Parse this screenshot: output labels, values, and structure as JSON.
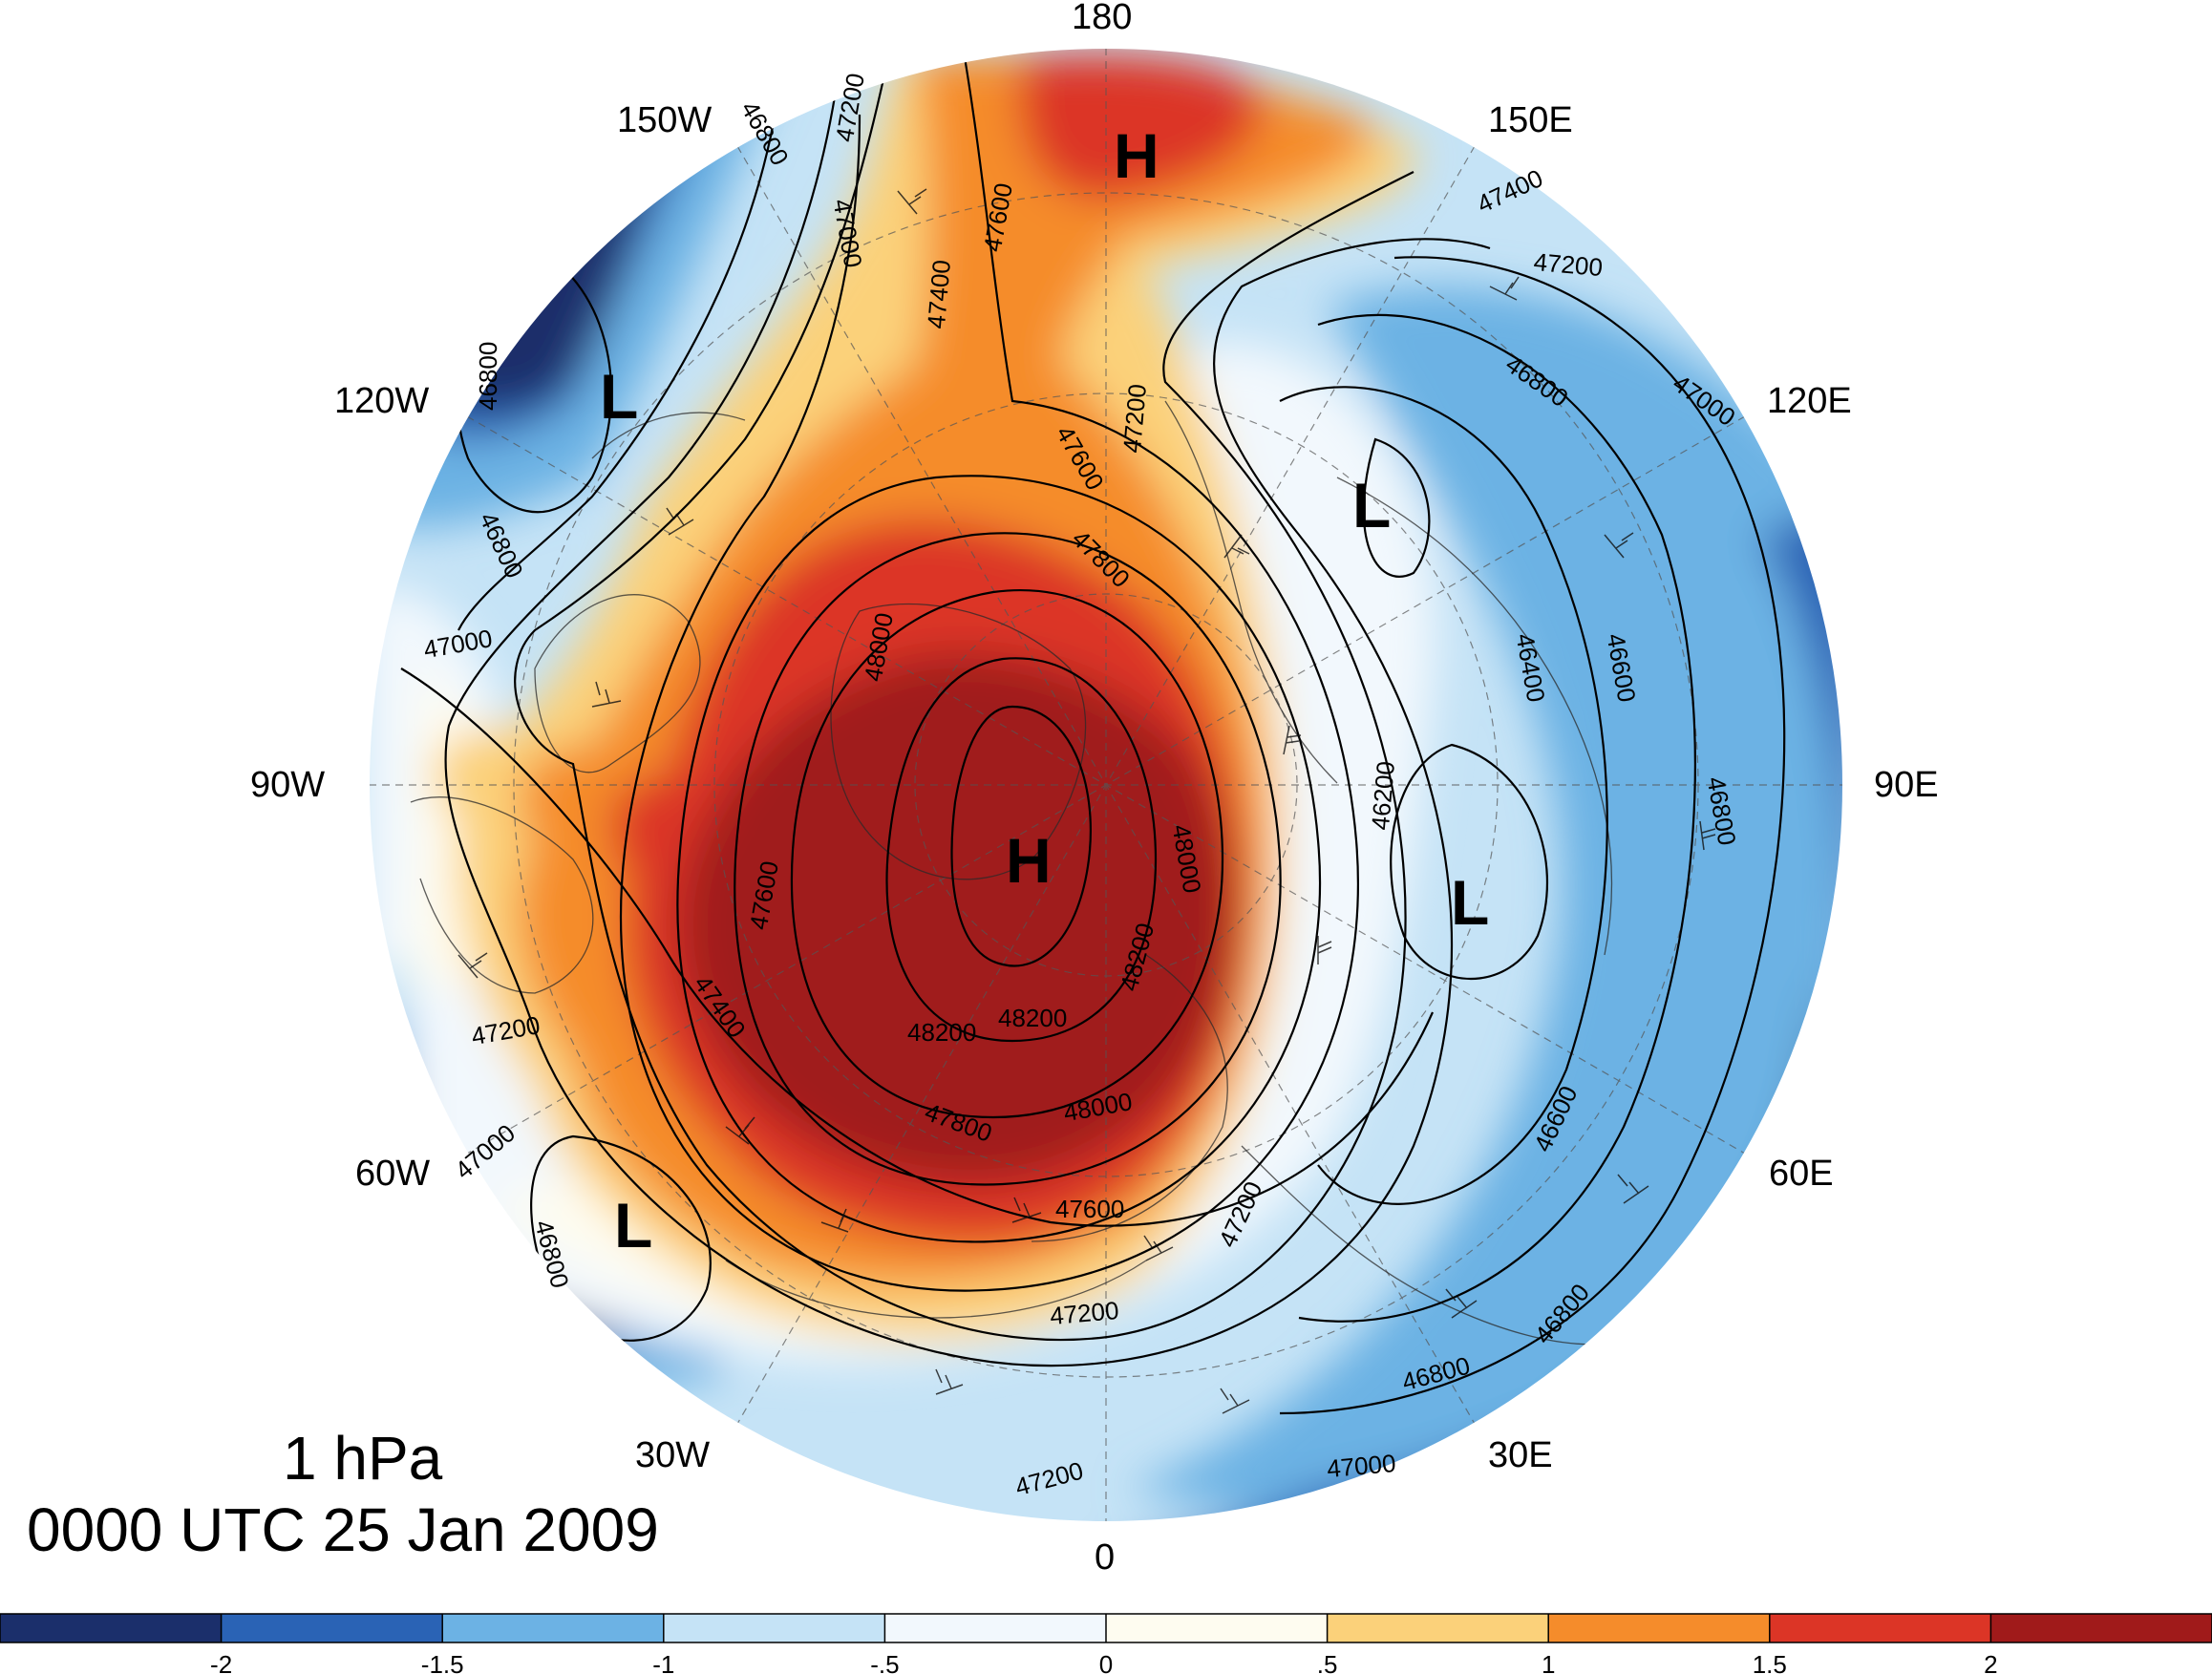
{
  "title": {
    "level": "1 hPa",
    "time": "0000 UTC 25 Jan 2009"
  },
  "longitude_labels": {
    "lon_180": "180",
    "lon_150e": "150E",
    "lon_120e": "120E",
    "lon_90e": "90E",
    "lon_60e": "60E",
    "lon_30e": "30E",
    "lon_0": "0",
    "lon_30w": "30W",
    "lon_60w": "60W",
    "lon_90w": "90W",
    "lon_120w": "120W",
    "lon_150w": "150W"
  },
  "pressure_centers": {
    "high_pole": "H",
    "high_dateline": "H",
    "low_east_asia": "L",
    "low_siberia": "L",
    "low_alaska": "L",
    "low_greenland": "L"
  },
  "contour_labels": {
    "c_48200_a": "48200",
    "c_48200_b": "48200",
    "c_48200_c": "48200",
    "c_48000_a": "48000",
    "c_48000_b": "48000",
    "c_48000_c": "48000",
    "c_47800_a": "47800",
    "c_47800_b": "47800",
    "c_47600_a": "47600",
    "c_47600_b": "47600",
    "c_47600_c": "47600",
    "c_47600_d": "47600",
    "c_47400_a": "47400",
    "c_47400_b": "47400",
    "c_47400_c": "47400",
    "c_47200_a": "47200",
    "c_47200_b": "47200",
    "c_47200_c": "47200",
    "c_47200_d": "47200",
    "c_47200_e": "47200",
    "c_47200_f": "47200",
    "c_47200_g": "47200",
    "c_47000_a": "47000",
    "c_47000_b": "47000",
    "c_47000_c": "47000",
    "c_47000_d": "47000",
    "c_47000_e": "47000",
    "c_46800_a": "46800",
    "c_46800_b": "46800",
    "c_46800_c": "46800",
    "c_46800_d": "46800",
    "c_46800_e": "46800",
    "c_46800_f": "46800",
    "c_46800_g": "46800",
    "c_46800_h": "46800",
    "c_46600_a": "46600",
    "c_46600_b": "46600",
    "c_46400_a": "46400",
    "c_46200_a": "46200"
  },
  "colorbar": {
    "ticks": [
      "-2",
      "-1.5",
      "-1",
      "-.5",
      "0",
      ".5",
      "1",
      "1.5",
      "2"
    ],
    "colors": [
      "#1b2f6b",
      "#2a63b5",
      "#6cb2e4",
      "#c5e3f6",
      "#f2f8fd",
      "#fefcf0",
      "#fbd17a",
      "#f58c2b",
      "#dc3526",
      "#a01a1a"
    ]
  }
}
